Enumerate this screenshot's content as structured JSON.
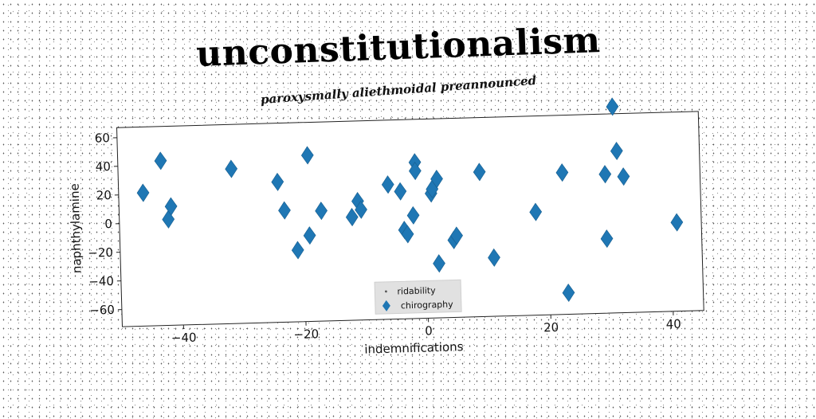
{
  "chart_data": {
    "type": "scatter",
    "title": "unconstitutionalism",
    "subtitle": "paroxysmally aliethmoidal preannounced",
    "xlabel": "indemnifications",
    "ylabel": "naphthylamine",
    "xlim": [
      -50,
      45
    ],
    "ylim": [
      -72,
      67
    ],
    "xticks": [
      -40,
      -20,
      0,
      20,
      40
    ],
    "yticks": [
      -60,
      -40,
      -20,
      0,
      20,
      40,
      60
    ],
    "legend": {
      "placement": "lower-center",
      "entries": [
        "ridability",
        "chirography"
      ]
    },
    "grid": false,
    "series": [
      {
        "name": "ridability",
        "marker": "point",
        "color": "#555555",
        "points": []
      },
      {
        "name": "chirography",
        "marker": "diamond",
        "color": "#1f77b4",
        "points": [
          [
            -46,
            21
          ],
          [
            -43,
            43
          ],
          [
            -42,
            2
          ],
          [
            -41.5,
            11
          ],
          [
            -31.5,
            36
          ],
          [
            -24,
            26
          ],
          [
            -23,
            6
          ],
          [
            -21,
            -22
          ],
          [
            -19,
            44
          ],
          [
            -19,
            -12
          ],
          [
            -17,
            5
          ],
          [
            -12,
            0
          ],
          [
            -11,
            11
          ],
          [
            -10.5,
            5
          ],
          [
            -6,
            22
          ],
          [
            -4,
            17
          ],
          [
            -3.5,
            -10
          ],
          [
            -3,
            -13
          ],
          [
            -2,
            0
          ],
          [
            -1.5,
            37
          ],
          [
            -1.5,
            31
          ],
          [
            1,
            15
          ],
          [
            1.2,
            18
          ],
          [
            2,
            25
          ],
          [
            2,
            -34
          ],
          [
            4.5,
            -18
          ],
          [
            5,
            -15
          ],
          [
            9,
            29
          ],
          [
            11,
            -31
          ],
          [
            18,
            0
          ],
          [
            22.5,
            27
          ],
          [
            23,
            -57
          ],
          [
            29.5,
            25
          ],
          [
            29.5,
            -20
          ],
          [
            31,
            72
          ],
          [
            31.5,
            41
          ],
          [
            32.5,
            23
          ],
          [
            41,
            -10
          ]
        ]
      }
    ]
  }
}
